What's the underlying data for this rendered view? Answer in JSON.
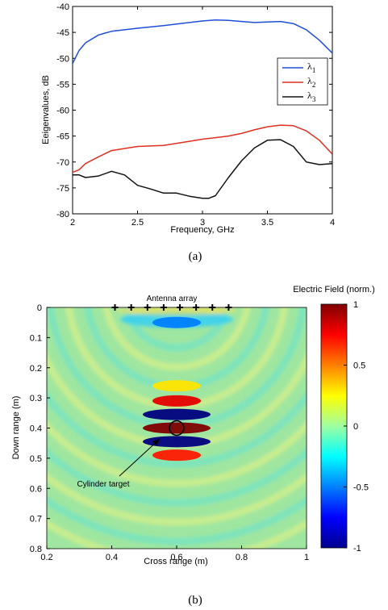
{
  "chart_data": [
    {
      "type": "line",
      "caption": "(a)",
      "xlabel": "Frequency, GHz",
      "ylabel": "Eeigenvalues, dB",
      "xlim": [
        2,
        4
      ],
      "ylim": [
        -80,
        -40
      ],
      "xticks": [
        "2",
        "2.5",
        "3",
        "3.5",
        "4"
      ],
      "yticks": [
        "-40",
        "-45",
        "-50",
        "-55",
        "-60",
        "-65",
        "-70",
        "-75",
        "-80"
      ],
      "legend_position": "right",
      "series": [
        {
          "name": "λ1",
          "color": "#1f4fd8",
          "x": [
            2.0,
            2.05,
            2.1,
            2.2,
            2.3,
            2.5,
            2.7,
            2.9,
            3.0,
            3.1,
            3.2,
            3.3,
            3.4,
            3.5,
            3.6,
            3.7,
            3.8,
            3.9,
            4.0
          ],
          "y": [
            -51,
            -48.5,
            -47,
            -45.5,
            -44.8,
            -44.2,
            -43.7,
            -43.1,
            -42.8,
            -42.6,
            -42.7,
            -42.9,
            -43.1,
            -43,
            -42.9,
            -43.3,
            -44.5,
            -46.5,
            -49
          ]
        },
        {
          "name": "λ2",
          "color": "#e03020",
          "x": [
            2.0,
            2.05,
            2.1,
            2.2,
            2.3,
            2.5,
            2.7,
            2.9,
            3.0,
            3.1,
            3.2,
            3.3,
            3.4,
            3.5,
            3.6,
            3.7,
            3.8,
            3.9,
            4.0
          ],
          "y": [
            -72,
            -71.5,
            -70.3,
            -69,
            -67.8,
            -67,
            -66.8,
            -66,
            -65.6,
            -65.3,
            -65,
            -64.5,
            -63.8,
            -63.2,
            -62.9,
            -63,
            -64,
            -65.8,
            -68.5
          ]
        },
        {
          "name": "λ3",
          "color": "#111111",
          "x": [
            2.0,
            2.05,
            2.1,
            2.2,
            2.3,
            2.4,
            2.5,
            2.6,
            2.7,
            2.8,
            2.9,
            3.0,
            3.05,
            3.1,
            3.2,
            3.3,
            3.4,
            3.5,
            3.6,
            3.7,
            3.8,
            3.9,
            4.0
          ],
          "y": [
            -72.5,
            -72.5,
            -73,
            -72.7,
            -71.8,
            -72.5,
            -74.5,
            -75.2,
            -76,
            -76,
            -76.6,
            -77,
            -77,
            -76.5,
            -73,
            -69.8,
            -67.3,
            -65.8,
            -65.7,
            -67,
            -70,
            -70.5,
            -70.3
          ]
        }
      ],
      "legend": [
        "λ1",
        "λ2",
        "λ3"
      ]
    },
    {
      "type": "heatmap",
      "caption": "(b)",
      "title": "Electric Field (norm.)",
      "xlabel": "Cross range (m)",
      "ylabel": "Down range (m)",
      "xlim": [
        0.2,
        1
      ],
      "ylim": [
        0,
        0.8
      ],
      "y_reversed": true,
      "xticks": [
        "0.2",
        "0.4",
        "0.6",
        "0.8",
        "1"
      ],
      "yticks": [
        "0",
        "0.1",
        "0.2",
        "0.3",
        "0.4",
        "0.5",
        "0.6",
        "0.7",
        "0.8"
      ],
      "colorbar_ticks": [
        "1",
        "0.5",
        "0",
        "-0.5",
        "-1"
      ],
      "colorbar_range": [
        -1,
        1
      ],
      "antenna_label": "Antenna array",
      "antenna_x": [
        0.41,
        0.46,
        0.51,
        0.56,
        0.61,
        0.66,
        0.71,
        0.76
      ],
      "antenna_y": 0,
      "target_label": "Cylinder target",
      "target": {
        "x": 0.6,
        "y": 0.4,
        "r": 0.022
      },
      "field_bands": [
        {
          "y": 0.05,
          "v": -0.5
        },
        {
          "y": 0.26,
          "v": 0.3
        },
        {
          "y": 0.31,
          "v": 0.8
        },
        {
          "y": 0.355,
          "v": -1
        },
        {
          "y": 0.4,
          "v": 1
        },
        {
          "y": 0.445,
          "v": -1
        },
        {
          "y": 0.49,
          "v": 0.7
        }
      ]
    }
  ]
}
